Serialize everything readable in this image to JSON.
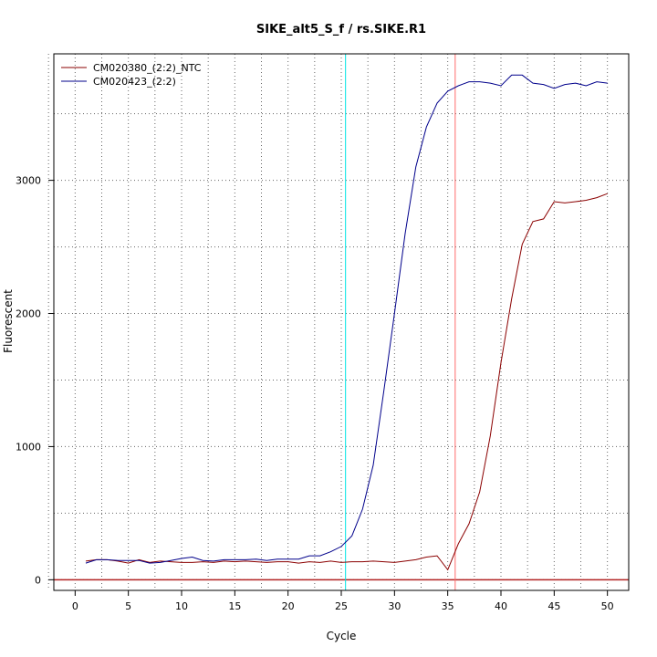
{
  "chart_data": {
    "type": "line",
    "title": "SIKE_alt5_S_f / rs.SIKE.R1",
    "xlabel": "Cycle",
    "ylabel": "Fluorescent",
    "xlim": [
      -2,
      52
    ],
    "ylim": [
      -80,
      3950
    ],
    "xticks": [
      0,
      5,
      10,
      15,
      20,
      25,
      30,
      35,
      40,
      45,
      50
    ],
    "yticks": [
      0,
      1000,
      2000,
      3000
    ],
    "grid": true,
    "legend": "top-left",
    "baseline": {
      "y": 0,
      "color": "#b22222"
    },
    "vlines": [
      {
        "x": 25.4,
        "color": "#00e5e5"
      },
      {
        "x": 35.7,
        "color": "#ff6b6b"
      }
    ],
    "series": [
      {
        "name": "CM020380_(2:2)_NTC",
        "color": "#8b0000",
        "x": [
          1,
          2,
          3,
          4,
          5,
          6,
          7,
          8,
          9,
          10,
          11,
          12,
          13,
          14,
          15,
          16,
          17,
          18,
          19,
          20,
          21,
          22,
          23,
          24,
          25,
          26,
          27,
          28,
          29,
          30,
          31,
          32,
          33,
          34,
          35,
          36,
          37,
          38,
          39,
          40,
          41,
          42,
          43,
          44,
          45,
          46,
          47,
          48,
          49,
          50
        ],
        "values": [
          140,
          150,
          150,
          140,
          125,
          150,
          130,
          140,
          135,
          130,
          130,
          135,
          130,
          140,
          135,
          140,
          135,
          130,
          135,
          135,
          125,
          135,
          130,
          140,
          130,
          135,
          135,
          140,
          135,
          130,
          140,
          150,
          170,
          180,
          75,
          270,
          420,
          660,
          1080,
          1630,
          2110,
          2520,
          2690,
          2710,
          2840,
          2830,
          2840,
          2850,
          2870,
          2900
        ]
      },
      {
        "name": "CM020423_(2:2)",
        "color": "#00008b",
        "x": [
          1,
          2,
          3,
          4,
          5,
          6,
          7,
          8,
          9,
          10,
          11,
          12,
          13,
          14,
          15,
          16,
          17,
          18,
          19,
          20,
          21,
          22,
          23,
          24,
          25,
          26,
          27,
          28,
          29,
          30,
          31,
          32,
          33,
          34,
          35,
          36,
          37,
          38,
          39,
          40,
          41,
          42,
          43,
          44,
          45,
          46,
          47,
          48,
          49,
          50
        ],
        "values": [
          125,
          150,
          150,
          145,
          145,
          145,
          125,
          130,
          145,
          160,
          170,
          145,
          140,
          150,
          150,
          150,
          155,
          145,
          155,
          155,
          155,
          180,
          180,
          210,
          250,
          330,
          530,
          860,
          1420,
          2000,
          2600,
          3100,
          3400,
          3580,
          3670,
          3710,
          3740,
          3740,
          3730,
          3710,
          3790,
          3790,
          3730,
          3720,
          3690,
          3720,
          3730,
          3710,
          3740,
          3730
        ]
      }
    ]
  }
}
